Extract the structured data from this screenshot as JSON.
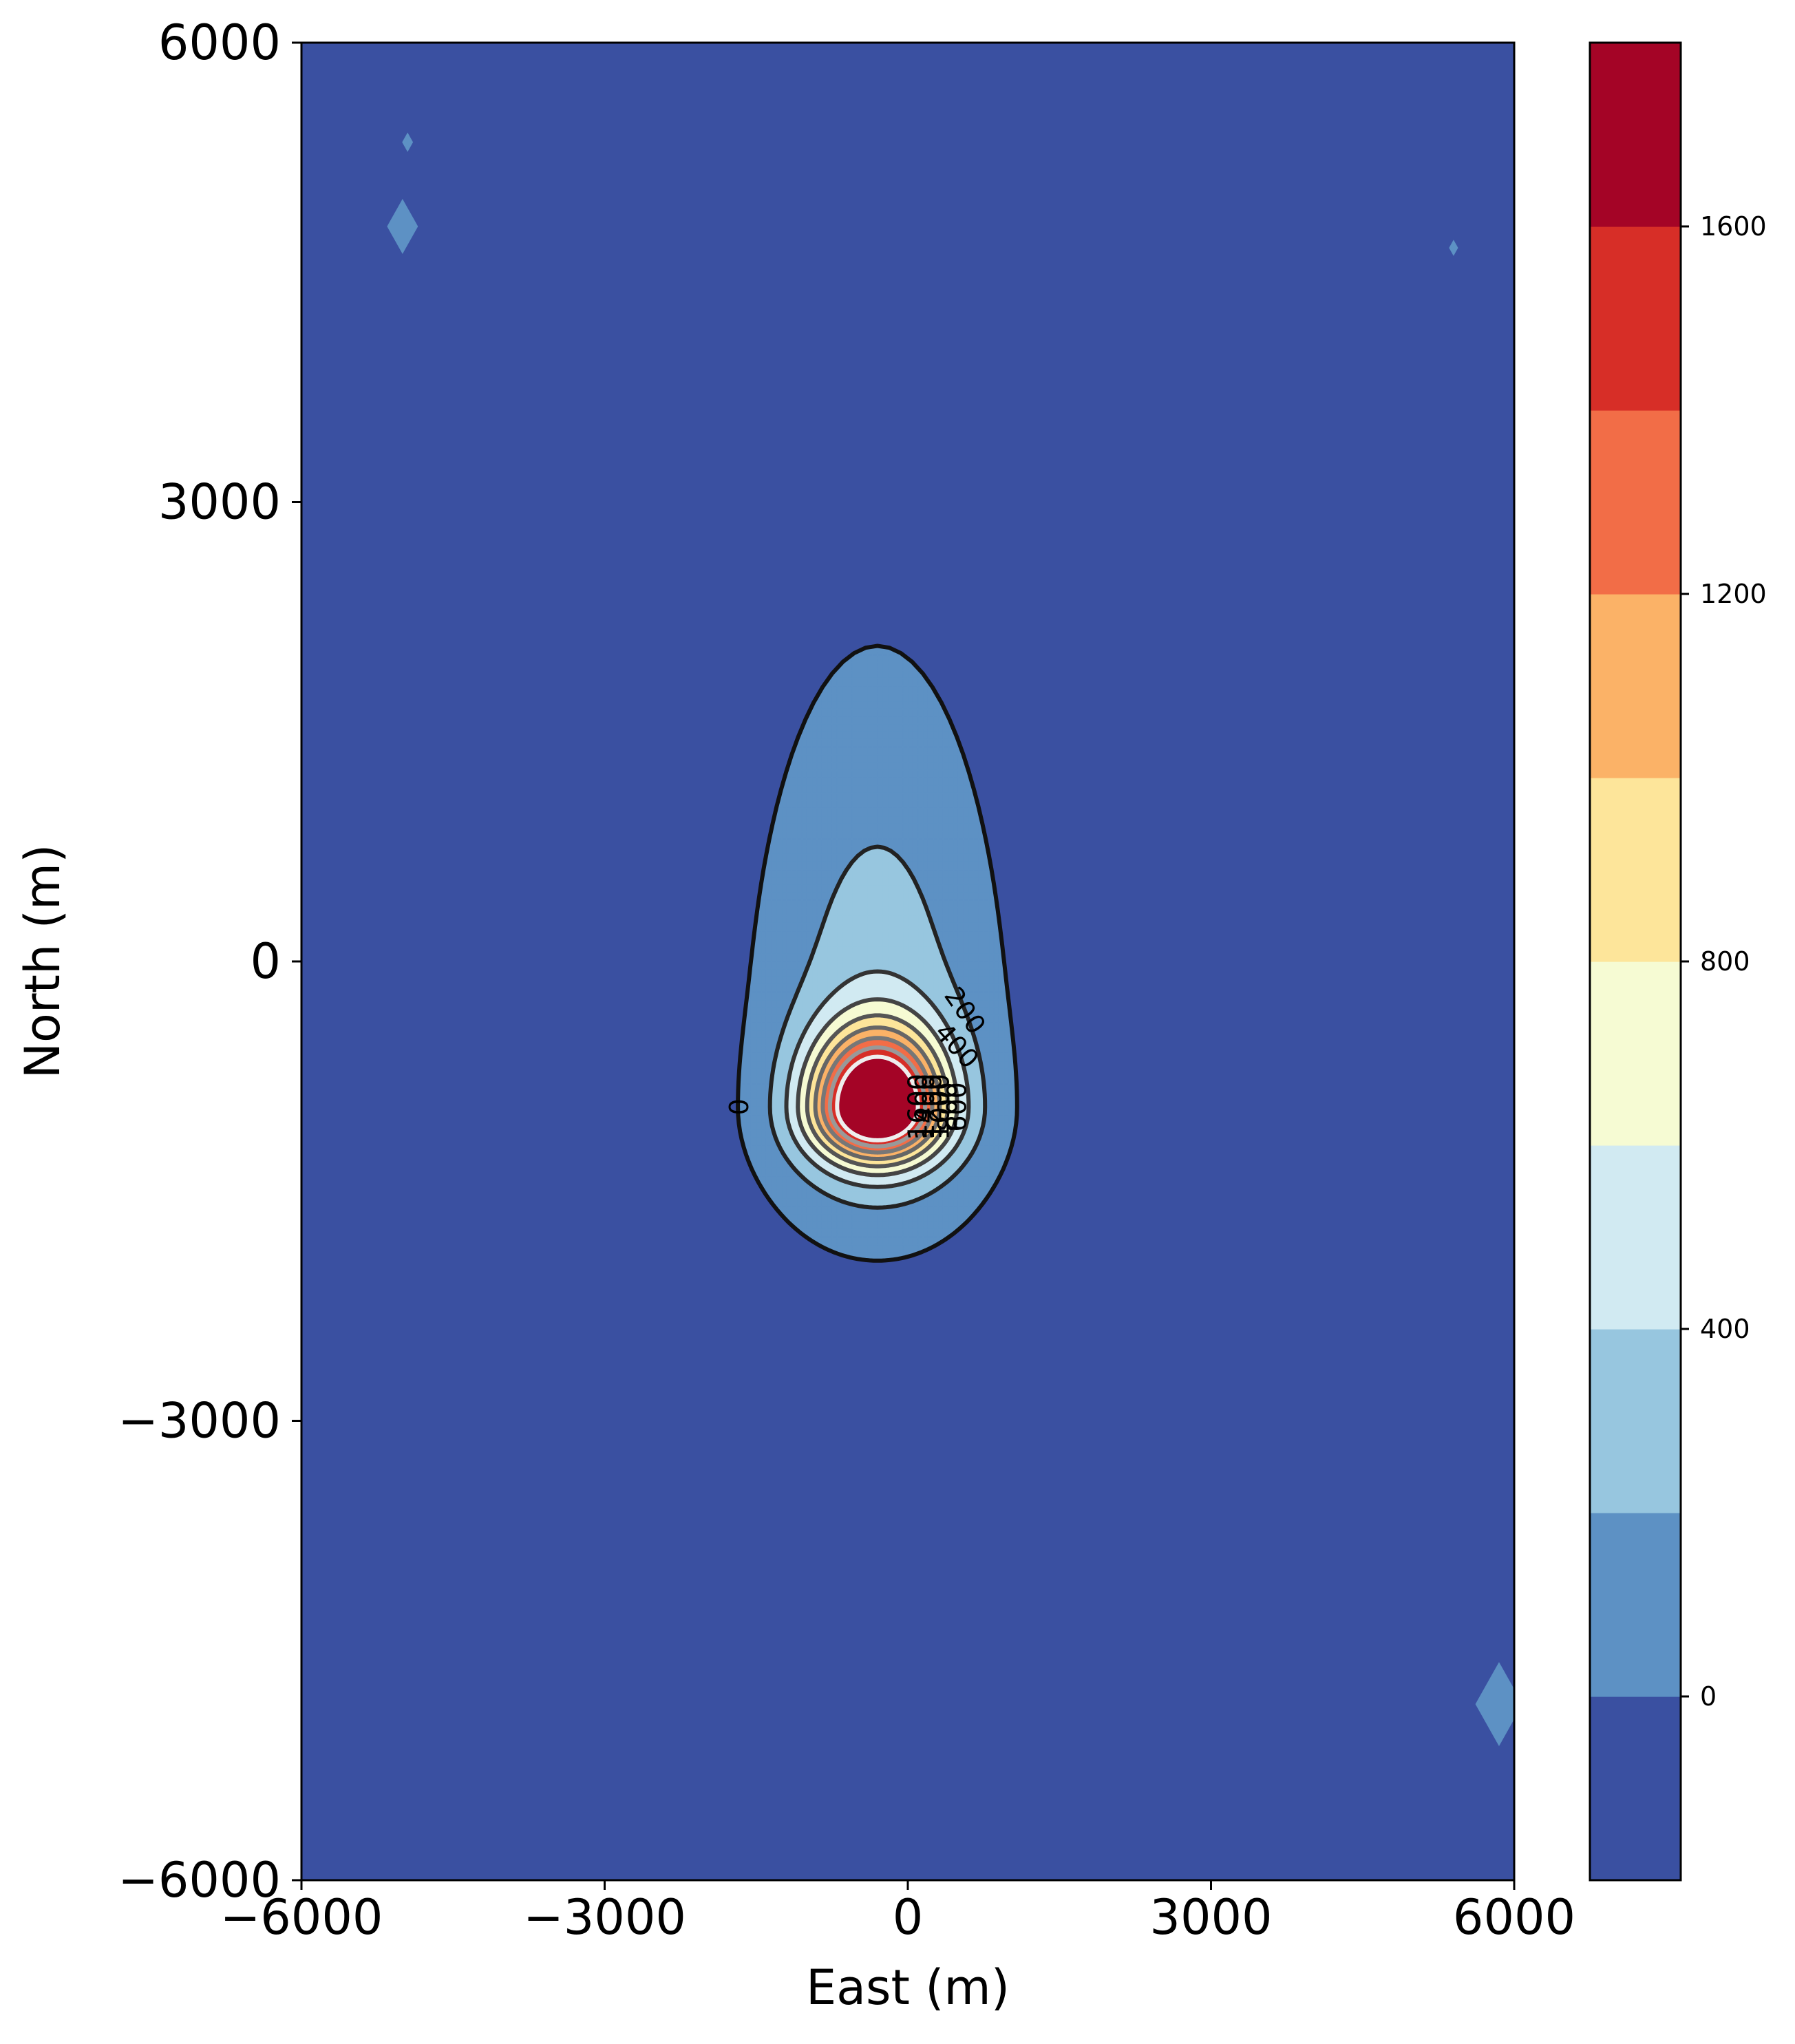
{
  "chart_data": {
    "type": "contour",
    "xlabel": "East (m)",
    "ylabel": "North (m)",
    "xlim": [
      -6000,
      6000
    ],
    "ylim": [
      -6000,
      6000
    ],
    "x_ticks": [
      -6000,
      -3000,
      0,
      3000,
      6000
    ],
    "y_ticks": [
      -6000,
      -3000,
      0,
      3000,
      6000
    ],
    "x_tick_labels": [
      "−6000",
      "−3000",
      "0",
      "3000",
      "6000"
    ],
    "y_tick_labels": [
      "−6000",
      "−3000",
      "0",
      "3000",
      "6000"
    ],
    "grid": false,
    "colorbar": {
      "range": [
        -200,
        1800
      ],
      "levels": [
        -200,
        0,
        200,
        400,
        600,
        800,
        1000,
        1200,
        1400,
        1600,
        1800
      ],
      "ticks": [
        0,
        400,
        800,
        1200,
        1600
      ],
      "tick_labels": [
        "0",
        "400",
        "800",
        "1200",
        "1600"
      ],
      "colors": [
        "#3a50a1",
        "#5d91c4",
        "#97c6df",
        "#d1eaf2",
        "#f6fbd3",
        "#fde59a",
        "#fbb267",
        "#f26d47",
        "#d72e27",
        "#a40426"
      ]
    },
    "peak": {
      "east": -300,
      "north": -950,
      "value": 1750
    },
    "contour_lines": [
      {
        "level": 0,
        "label": "0",
        "color": "#111111"
      },
      {
        "level": 200,
        "label": "200",
        "color": "#222222"
      },
      {
        "level": 400,
        "label": "400",
        "color": "#333333"
      },
      {
        "level": 600,
        "label": "600",
        "color": "#444444"
      },
      {
        "level": 800,
        "label": "800",
        "color": "#555555"
      },
      {
        "level": 1000,
        "label": "1000",
        "color": "#666666"
      },
      {
        "level": 1200,
        "label": "1200",
        "color": "#777777"
      },
      {
        "level": 1400,
        "label": "1400",
        "color": "#999999"
      },
      {
        "level": 1600,
        "label": "1600",
        "color": "#eeeeee"
      }
    ]
  }
}
